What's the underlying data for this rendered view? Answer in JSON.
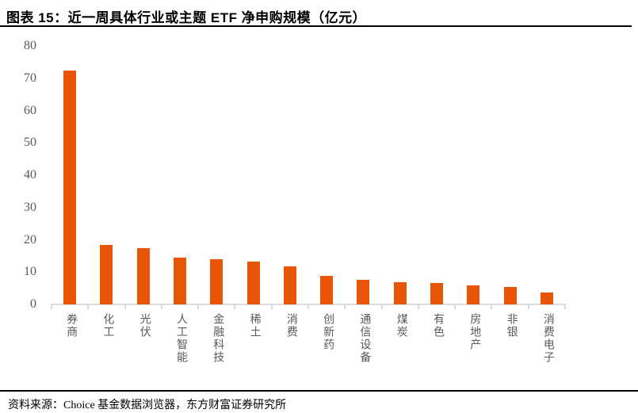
{
  "title": "图表 15：近一周具体行业或主题 ETF 净申购规模（亿元）",
  "footer": {
    "source": "资料来源：Choice 基金数据浏览器，东方财富证券研究所"
  },
  "chart_data": {
    "type": "bar",
    "title": "近一周具体行业或主题ETF净申购规模（亿元）",
    "categories": [
      "券商",
      "化工",
      "光伏",
      "人工智能",
      "金融科技",
      "稀土",
      "消费",
      "创新药",
      "通信设备",
      "煤炭",
      "有色",
      "房地产",
      "非银",
      "消费电子"
    ],
    "values": [
      72.4,
      18.5,
      17.4,
      14.6,
      13.9,
      13.2,
      11.7,
      8.8,
      7.6,
      6.8,
      6.7,
      5.8,
      5.4,
      3.7
    ],
    "xlabel": "",
    "ylabel": "",
    "ylim": [
      0,
      80
    ],
    "yticks": [
      0,
      10,
      20,
      30,
      40,
      50,
      60,
      70,
      80
    ],
    "grid": false,
    "legend": false,
    "bar_color": "#e85506",
    "axis_color": "#d9d9d9",
    "tick_label_color": "#595965",
    "category_label_color": "#595959"
  }
}
